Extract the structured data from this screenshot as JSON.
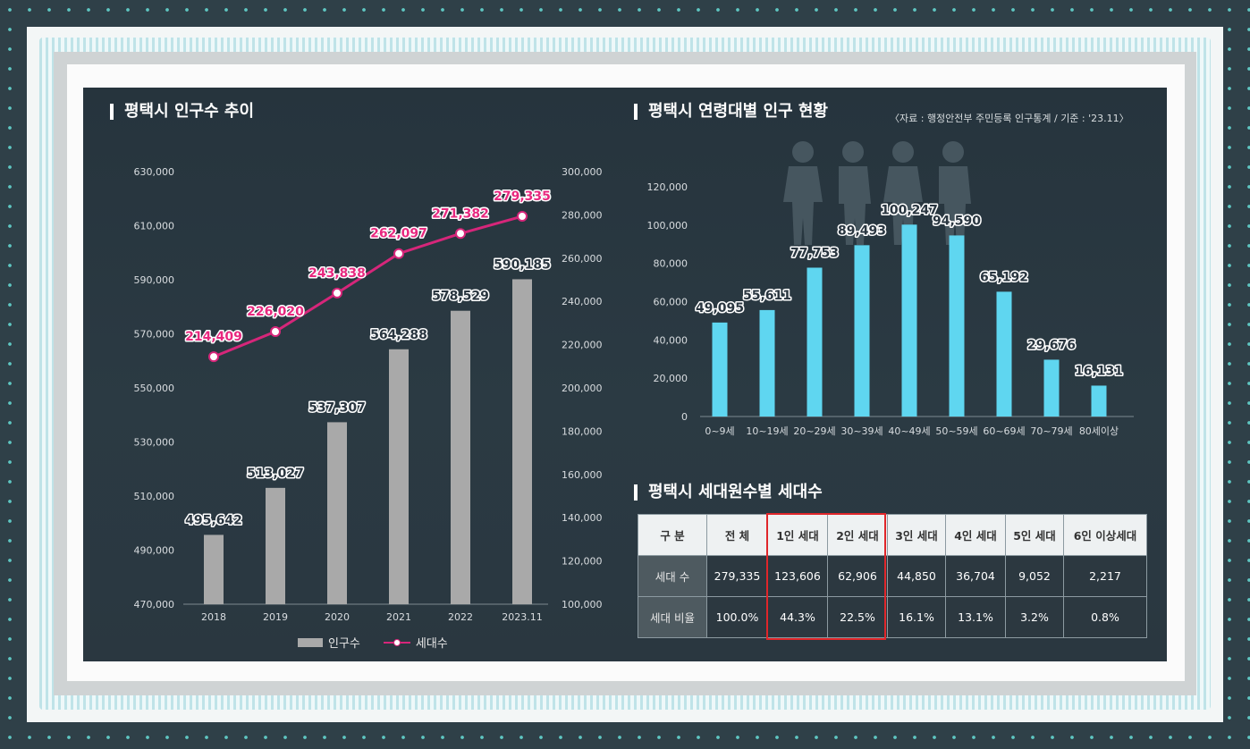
{
  "left_chart": {
    "title": "평택시 인구수 추이",
    "legend": {
      "bar": "인구수",
      "line": "세대수"
    },
    "colors": {
      "bar": "#a9a9a9",
      "line": "#d6267a",
      "label_line": "#e8287f"
    }
  },
  "right_chart": {
    "title": "평택시 연령대별 인구 현황",
    "source": "〈자료 : 행정안전부 주민등록 인구통계 / 기준 : '23.11〉",
    "colors": {
      "bar": "#5fd6f0"
    }
  },
  "table": {
    "title": "평택시 세대원수별 세대수",
    "corner": "구 분",
    "headers": [
      "전 체",
      "1인 세대",
      "2인 세대",
      "3인 세대",
      "4인 세대",
      "5인 세대",
      "6인 이상세대"
    ],
    "rows": [
      {
        "label": "세대 수",
        "values": [
          "279,335",
          "123,606",
          "62,906",
          "44,850",
          "36,704",
          "9,052",
          "2,217"
        ]
      },
      {
        "label": "세대 비율",
        "values": [
          "100.0%",
          "44.3%",
          "22.5%",
          "16.1%",
          "13.1%",
          "3.2%",
          "0.8%"
        ]
      }
    ],
    "highlight_color": "#e0262a"
  },
  "chart_data": [
    {
      "type": "bar",
      "title": "평택시 인구수 추이",
      "categories": [
        "2018",
        "2019",
        "2020",
        "2021",
        "2022",
        "2023.11"
      ],
      "series": [
        {
          "name": "인구수",
          "axis": "left",
          "type": "bar",
          "values": [
            495642,
            513027,
            537307,
            564288,
            578529,
            590185
          ],
          "labels": [
            "495,642",
            "513,027",
            "537,307",
            "564,288",
            "578,529",
            "590,185"
          ]
        },
        {
          "name": "세대수",
          "axis": "right",
          "type": "line",
          "values": [
            214409,
            226020,
            243838,
            262097,
            271382,
            279335
          ],
          "labels": [
            "214,409",
            "226,020",
            "243,838",
            "262,097",
            "271,382",
            "279,335"
          ]
        }
      ],
      "ylim_left": [
        470000,
        630000
      ],
      "yticks_left": [
        "470,000",
        "490,000",
        "510,000",
        "530,000",
        "550,000",
        "570,000",
        "590,000",
        "610,000",
        "630,000"
      ],
      "ylim_right": [
        100000,
        300000
      ],
      "yticks_right": [
        "100,000",
        "120,000",
        "140,000",
        "160,000",
        "180,000",
        "200,000",
        "220,000",
        "240,000",
        "260,000",
        "280,000",
        "300,000"
      ],
      "legend": "bottom",
      "grid": false
    },
    {
      "type": "bar",
      "title": "평택시 연령대별 인구 현황",
      "categories": [
        "0~9세",
        "10~19세",
        "20~29세",
        "30~39세",
        "40~49세",
        "50~59세",
        "60~69세",
        "70~79세",
        "80세이상"
      ],
      "values": [
        49095,
        55611,
        77753,
        89493,
        100247,
        94590,
        65192,
        29676,
        16131
      ],
      "labels": [
        "49,095",
        "55,611",
        "77,753",
        "89,493",
        "100,247",
        "94,590",
        "65,192",
        "29,676",
        "16,131"
      ],
      "ylim": [
        0,
        120000
      ],
      "yticks": [
        "0",
        "20,000",
        "40,000",
        "60,000",
        "80,000",
        "100,000",
        "120,000"
      ],
      "grid": false
    }
  ]
}
